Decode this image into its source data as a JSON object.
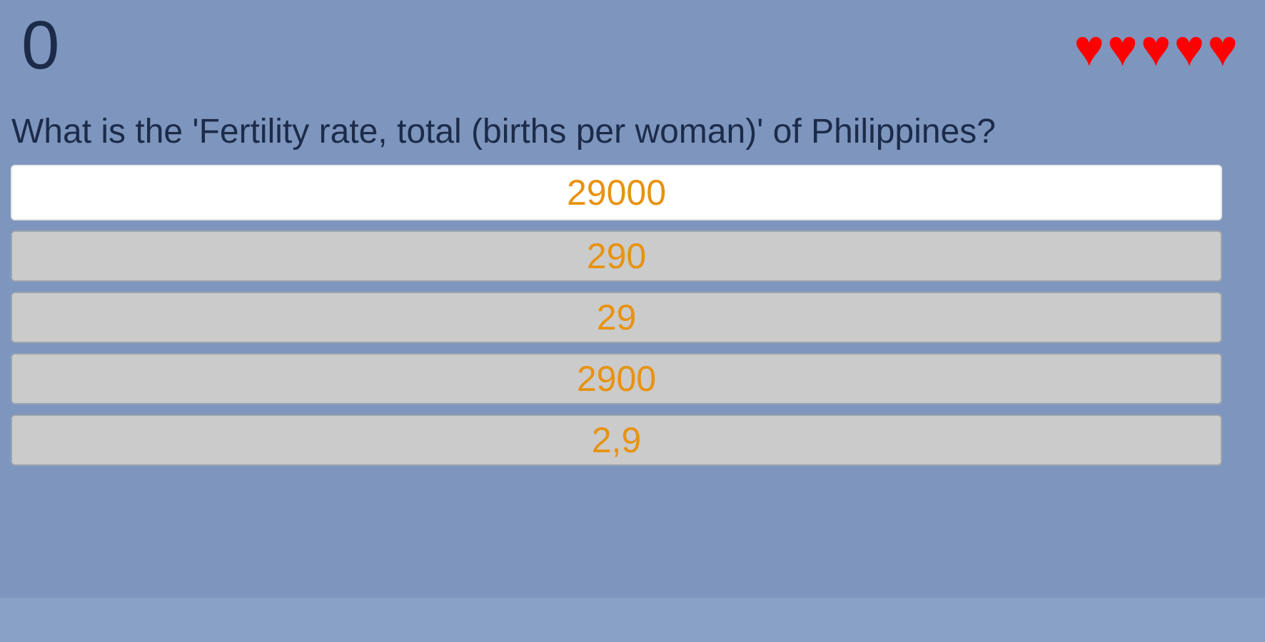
{
  "theme": {
    "background": "#7e96bd",
    "footer_background": "#8aa1c6",
    "text_dark": "#1c2b4a",
    "answer_text": "#e8920e",
    "answer_default_bg": "#cbcbcb",
    "answer_selected_bg": "#ffffff",
    "heart_color": "#ff0000"
  },
  "header": {
    "score": "0",
    "lives_count": 5,
    "heart_icon": "♥"
  },
  "question": {
    "text": "What is the 'Fertility rate, total (births per woman)' of Philippines?"
  },
  "answers": {
    "options": [
      {
        "label": "29000",
        "state": "highlighted"
      },
      {
        "label": "290",
        "state": "default"
      },
      {
        "label": "29",
        "state": "default"
      },
      {
        "label": "2900",
        "state": "default"
      },
      {
        "label": "2,9",
        "state": "default"
      }
    ]
  }
}
